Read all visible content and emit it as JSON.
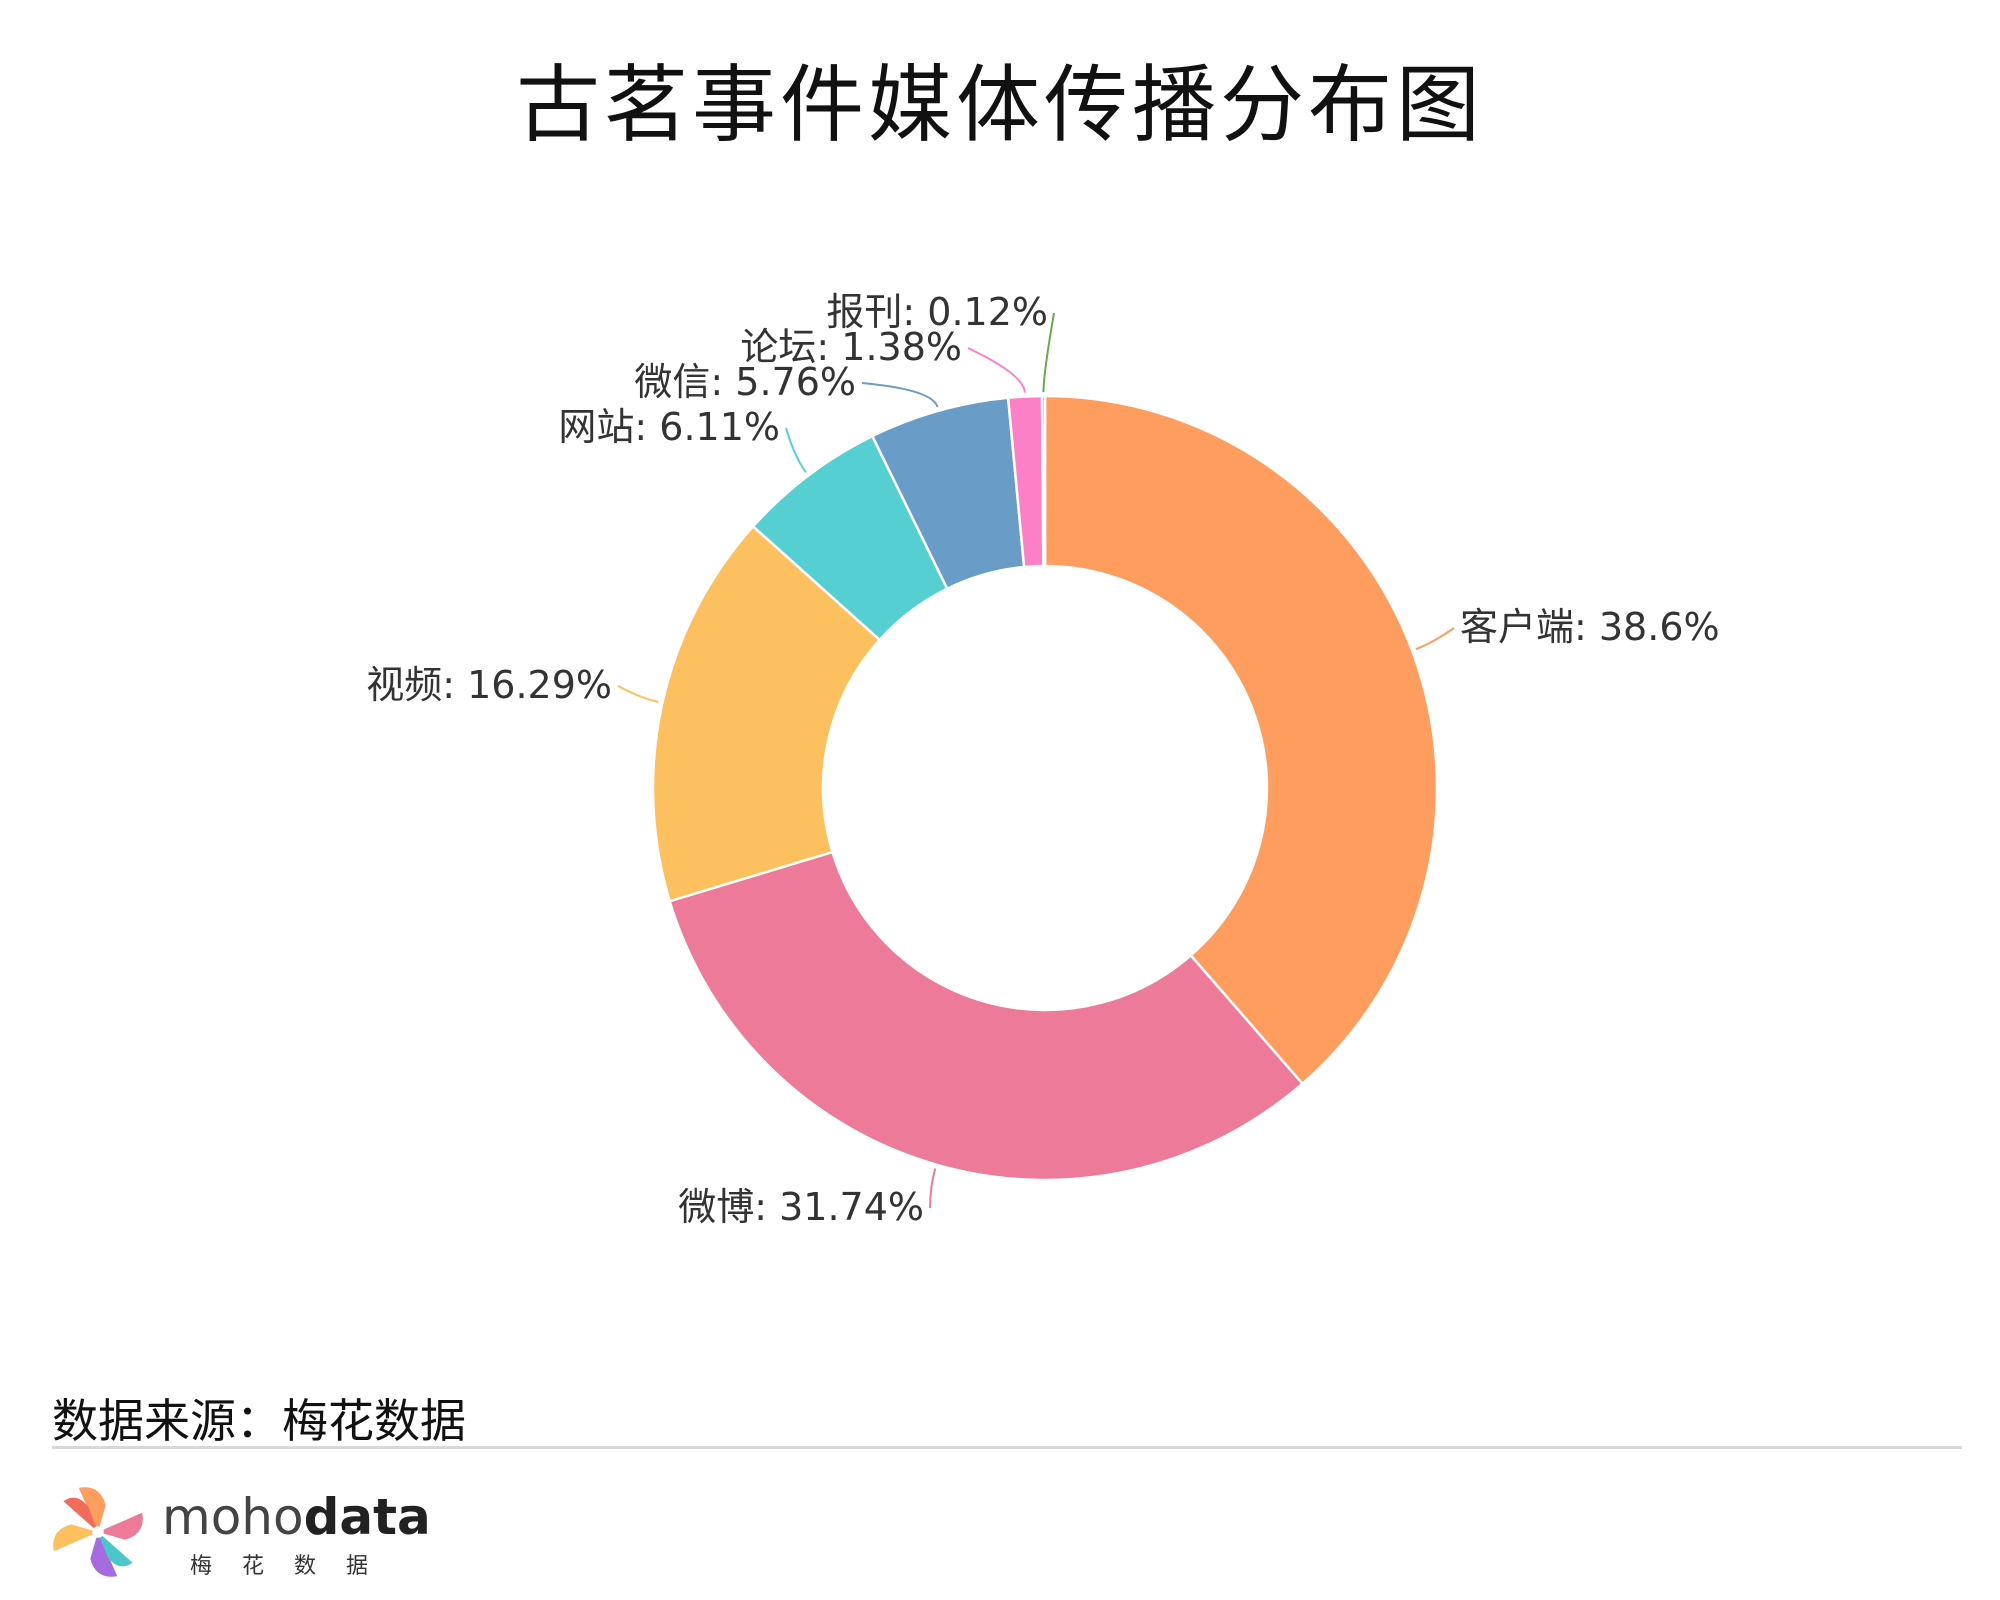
{
  "title": "古茗事件媒体传播分布图",
  "chart_data": {
    "type": "pie",
    "donut": true,
    "title": "古茗事件媒体传播分布图",
    "slices": [
      {
        "label": "客户端",
        "value": 38.6,
        "display": "38.6%",
        "color": "#FE9D5D"
      },
      {
        "label": "微博",
        "value": 31.74,
        "display": "31.74%",
        "color": "#EC7A98"
      },
      {
        "label": "视频",
        "value": 16.29,
        "display": "16.29%",
        "color": "#FDC05F"
      },
      {
        "label": "网站",
        "value": 6.11,
        "display": "6.11%",
        "color": "#56CFD2"
      },
      {
        "label": "微信",
        "value": 5.76,
        "display": "5.76%",
        "color": "#699CC6"
      },
      {
        "label": "论坛",
        "value": 1.38,
        "display": "1.38%",
        "color": "#FD80C6"
      },
      {
        "label": "报刊",
        "value": 0.12,
        "display": "0.12%",
        "color": "#6AA84F"
      }
    ]
  },
  "source": "数据来源：梅花数据",
  "brand": {
    "name_light": "moho",
    "name_bold": "data",
    "subtitle": "梅花数据"
  }
}
